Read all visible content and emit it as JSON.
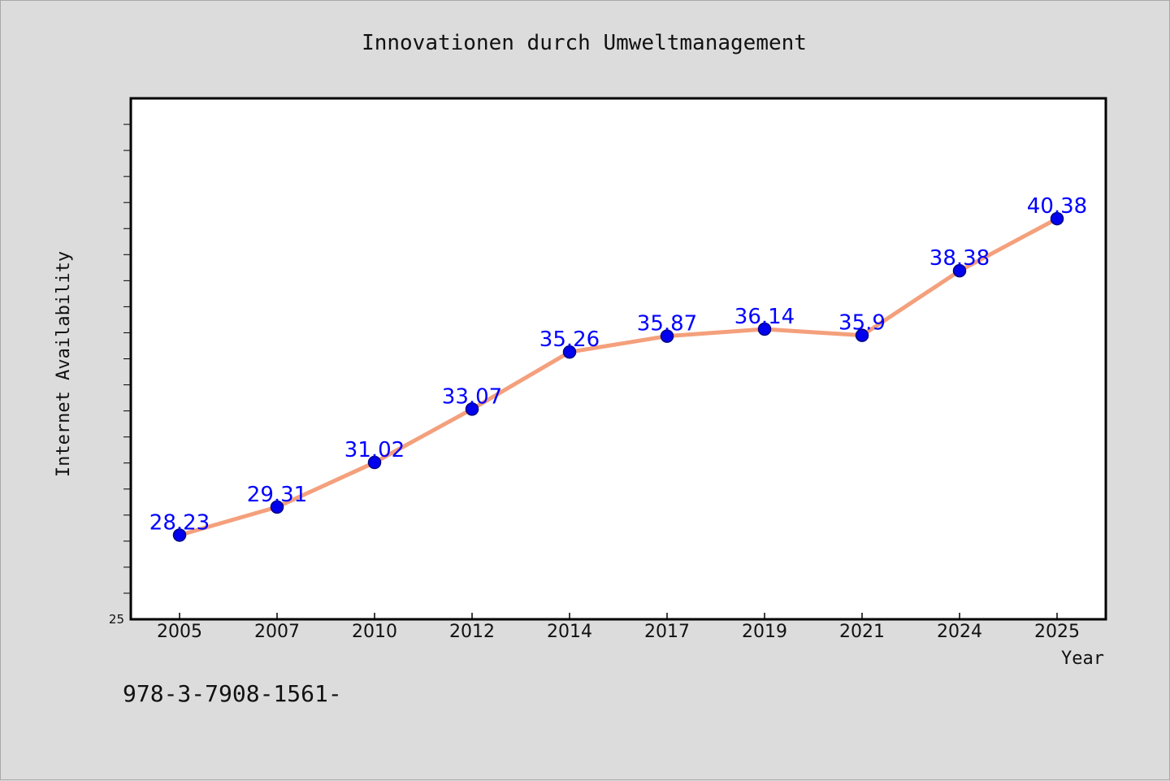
{
  "chart_data": {
    "type": "line",
    "title": "Innovationen durch Umweltmanagement",
    "xlabel": "Year",
    "ylabel": "Internet Availability",
    "categories": [
      "2005",
      "2007",
      "2010",
      "2012",
      "2014",
      "2017",
      "2019",
      "2021",
      "2024",
      "2025"
    ],
    "series": [
      {
        "values": [
          28.23,
          29.31,
          31.02,
          33.07,
          35.26,
          35.87,
          36.14,
          35.9,
          38.38,
          40.38
        ]
      }
    ],
    "data_labels": [
      "28.23",
      "29.31",
      "31.02",
      "33.07",
      "35.26",
      "35.87",
      "36.14",
      "35.9",
      "38.38",
      "40.38"
    ],
    "ylim": [
      25,
      45
    ],
    "y_tick_labels": [
      "25"
    ],
    "y_minor_tick_step": 1,
    "grid": false,
    "colors": {
      "line": "#f4a07c",
      "marker": "#0000ee",
      "marker_edge": "#000080",
      "label": "#0000ff"
    }
  },
  "footer": {
    "text": "978-3-7908-1561-"
  }
}
